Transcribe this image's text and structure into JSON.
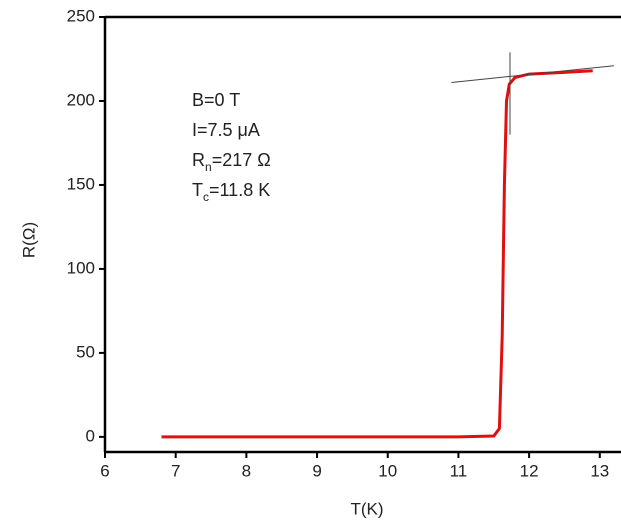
{
  "chart_data": {
    "type": "line",
    "x_label": "T(K)",
    "y_label": "R(Ω)",
    "xlim": [
      6,
      13.3
    ],
    "ylim": [
      -9,
      250
    ],
    "xticks": [
      6,
      7,
      8,
      9,
      10,
      11,
      12,
      13
    ],
    "yticks": [
      0,
      50,
      100,
      150,
      200,
      250
    ],
    "series": [
      {
        "color": "#e01010",
        "x": [
          6.8,
          8,
          9,
          10,
          11,
          11.5,
          11.58,
          11.62,
          11.65,
          11.68,
          11.72,
          11.8,
          12,
          12.5,
          12.9
        ],
        "values": [
          0,
          0,
          0,
          0,
          0,
          0.5,
          5,
          60,
          150,
          200,
          210,
          214,
          216,
          217,
          218
        ]
      },
      {
        "color": "#444444",
        "x": [
          10.9,
          13.2
        ],
        "values": [
          211,
          221
        ]
      },
      {
        "color": "#444444",
        "x": [
          11.73,
          11.73
        ],
        "values": [
          229,
          180
        ]
      }
    ],
    "annotations": [
      {
        "text": "B=0 T"
      },
      {
        "text": "I=7.5 μA"
      },
      {
        "text": "R",
        "sub": "n",
        "rest": "=217 Ω"
      },
      {
        "text": "T",
        "sub": "c",
        "rest": "=11.8 K"
      }
    ]
  }
}
